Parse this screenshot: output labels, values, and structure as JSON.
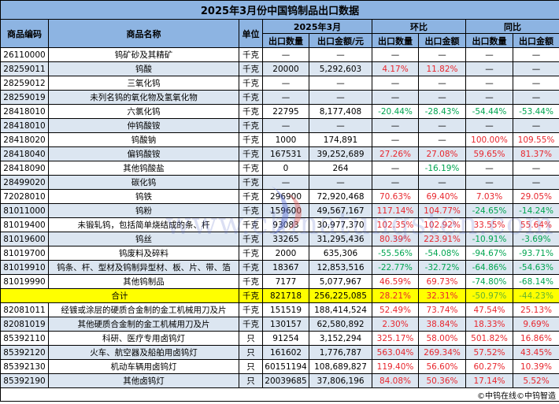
{
  "title": "2025年3月份中国钨制品出口数据",
  "headers": {
    "code": "商品编码",
    "name": "商品名称",
    "unit": "单位",
    "period": "2025年3月",
    "mom": "环比",
    "yoy": "同比",
    "qty": "出口数量",
    "amount": "出口金额/元",
    "mom_qty": "出口数量",
    "mom_amt": "出口金额",
    "yoy_qty": "出口数量",
    "yoy_amt": "出口金额"
  },
  "colors": {
    "header": "#8db4e2",
    "row_alt": "#dce6f1",
    "total": "#ffff00",
    "increase": "#e8262d",
    "decrease": "#00a550"
  },
  "rows": [
    {
      "code": "26110000",
      "name": "钨矿砂及其精矿",
      "unit": "千克",
      "qty": "—",
      "amount": "—",
      "mom_qty": "—",
      "mom_amt": "—",
      "yoy_qty": "—",
      "yoy_amt": "—"
    },
    {
      "code": "28259011",
      "name": "钨酸",
      "unit": "千克",
      "qty": "20000",
      "amount": "5,292,603",
      "mom_qty": "4.17%",
      "mom_amt": "11.82%",
      "yoy_qty": "—",
      "yoy_amt": "—"
    },
    {
      "code": "28259012",
      "name": "三氧化钨",
      "unit": "千克",
      "qty": "—",
      "amount": "—",
      "mom_qty": "—",
      "mom_amt": "—",
      "yoy_qty": "—",
      "yoy_amt": "—"
    },
    {
      "code": "28259019",
      "name": "未列名钨的氧化物及氢氧化物",
      "unit": "千克",
      "qty": "—",
      "amount": "—",
      "mom_qty": "—",
      "mom_amt": "—",
      "yoy_qty": "—",
      "yoy_amt": "—"
    },
    {
      "code": "28418010",
      "name": "六氯化钨",
      "unit": "千克",
      "qty": "22795",
      "amount": "8,177,408",
      "mom_qty": "-20.44%",
      "mom_amt": "-28.43%",
      "yoy_qty": "-54.44%",
      "yoy_amt": "-53.44%"
    },
    {
      "code": "28418010",
      "name": "仲钨酸铵",
      "unit": "千克",
      "qty": "—",
      "amount": "—",
      "mom_qty": "—",
      "mom_amt": "—",
      "yoy_qty": "—",
      "yoy_amt": "—"
    },
    {
      "code": "28418020",
      "name": "钨酸钠",
      "unit": "千克",
      "qty": "1000",
      "amount": "174,891",
      "mom_qty": "—",
      "mom_amt": "—",
      "yoy_qty": "100.00%",
      "yoy_amt": "109.55%"
    },
    {
      "code": "28418040",
      "name": "偏钨酸铵",
      "unit": "千克",
      "qty": "167531",
      "amount": "39,252,689",
      "mom_qty": "27.26%",
      "mom_amt": "27.08%",
      "yoy_qty": "59.65%",
      "yoy_amt": "81.37%"
    },
    {
      "code": "28418090",
      "name": "其他钨酸盐",
      "unit": "千克",
      "qty": "0",
      "amount": "264",
      "mom_qty": "—",
      "mom_amt": "-16.19%",
      "yoy_qty": "—",
      "yoy_amt": "—"
    },
    {
      "code": "28499020",
      "name": "碳化钨",
      "unit": "千克",
      "qty": "—",
      "amount": "—",
      "mom_qty": "—",
      "mom_amt": "—",
      "yoy_qty": "—",
      "yoy_amt": "—"
    },
    {
      "code": "72028010",
      "name": "钨铁",
      "unit": "千克",
      "qty": "296900",
      "amount": "72,920,468",
      "mom_qty": "70.63%",
      "mom_amt": "69.40%",
      "yoy_qty": "7.03%",
      "yoy_amt": "29.05%"
    },
    {
      "code": "81011000",
      "name": "钨粉",
      "unit": "千克",
      "qty": "159600",
      "amount": "49,567,167",
      "mom_qty": "117.14%",
      "mom_amt": "104.77%",
      "yoy_qty": "-24.65%",
      "yoy_amt": "-14.24%"
    },
    {
      "code": "81019400",
      "name": "未锻轧钨，包括简单烧结成的条、杆",
      "unit": "千克",
      "qty": "93083",
      "amount": "30,977,370",
      "mom_qty": "102.35%",
      "mom_amt": "102.92%",
      "yoy_qty": "33.55%",
      "yoy_amt": "55.64%"
    },
    {
      "code": "81019600",
      "name": "钨丝",
      "unit": "千克",
      "qty": "33265",
      "amount": "31,295,436",
      "mom_qty": "80.39%",
      "mom_amt": "223.91%",
      "yoy_qty": "-10.91%",
      "yoy_amt": "-3.69%"
    },
    {
      "code": "81019700",
      "name": "钨废料及碎料",
      "unit": "千克",
      "qty": "2000",
      "amount": "635,306",
      "mom_qty": "-55.56%",
      "mom_amt": "-54.08%",
      "yoy_qty": "-94.67%",
      "yoy_amt": "-93.71%"
    },
    {
      "code": "81019910",
      "name": "钨条、杆、型材及钨制异型材、板、片、带、箔",
      "unit": "千克",
      "qty": "18367",
      "amount": "12,853,516",
      "mom_qty": "-22.77%",
      "mom_amt": "-32.72%",
      "yoy_qty": "-64.86%",
      "yoy_amt": "-54.63%"
    },
    {
      "code": "81019990",
      "name": "其他钨制品",
      "unit": "千克",
      "qty": "7177",
      "amount": "5,077,967",
      "mom_qty": "46.59%",
      "mom_amt": "69.73%",
      "yoy_qty": "-74.80%",
      "yoy_amt": "-68.14%"
    },
    {
      "total": true,
      "code": "",
      "name": "合计",
      "unit": "千克",
      "qty": "821718",
      "amount": "256,225,085",
      "mom_qty": "28.21%",
      "mom_amt": "32.31%",
      "yoy_qty": "-50.97%",
      "yoy_amt": "-44.23%"
    },
    {
      "code": "82081011",
      "name": "经镀或涂层的硬质合金制的金工机械用刀及片",
      "unit": "千克",
      "qty": "151519",
      "amount": "188,414,524",
      "mom_qty": "52.49%",
      "mom_amt": "73.74%",
      "yoy_qty": "47.54%",
      "yoy_amt": "25.13%"
    },
    {
      "code": "82081019",
      "name": "其他硬质合金制的金工机械用刀及片",
      "unit": "千克",
      "qty": "130157",
      "amount": "62,580,892",
      "mom_qty": "2.30%",
      "mom_amt": "38.84%",
      "yoy_qty": "18.33%",
      "yoy_amt": "9.69%"
    },
    {
      "code": "85392110",
      "name": "科研、医疗专用卤钨灯",
      "unit": "只",
      "qty": "91254",
      "amount": "3,152,294",
      "mom_qty": "325.17%",
      "mom_amt": "58.00%",
      "yoy_qty": "501.82%",
      "yoy_amt": "16.86%"
    },
    {
      "code": "85392120",
      "name": "火车、航空器及船舶用卤钨灯",
      "unit": "只",
      "qty": "161602",
      "amount": "1,776,787",
      "mom_qty": "563.04%",
      "mom_amt": "269.34%",
      "yoy_qty": "57.52%",
      "yoy_amt": "43.45%"
    },
    {
      "code": "85392130",
      "name": "机动车辆用卤钨灯",
      "unit": "只",
      "qty": "60151194",
      "amount": "108,689,827",
      "mom_qty": "119.40%",
      "mom_amt": "56.60%",
      "yoy_qty": "60.27%",
      "yoy_amt": "10.39%"
    },
    {
      "code": "85392190",
      "name": "其他卤钨灯",
      "unit": "只",
      "qty": "20039685",
      "amount": "37,806,196",
      "mom_qty": "84.08%",
      "mom_amt": "50.36%",
      "yoy_qty": "17.14%",
      "yoy_amt": "5.52%"
    }
  ],
  "footer": "©中钨在线©中钨智造",
  "watermark": "www.chinatungsten.com"
}
